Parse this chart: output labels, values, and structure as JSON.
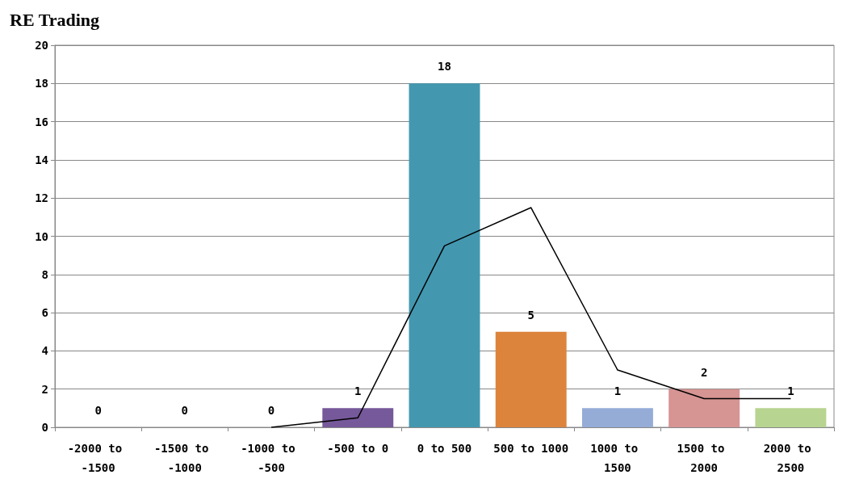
{
  "chart_data": {
    "type": "bar",
    "title": "RE Trading",
    "categories": [
      "-2000 to -1500",
      "-1500 to -1000",
      "-1000 to -500",
      "-500 to 0",
      "0 to 500",
      "500 to 1000",
      "1000 to 1500",
      "1500 to 2000",
      "2000 to 2500"
    ],
    "series": [
      {
        "values": [
          0,
          0,
          0,
          1,
          18,
          5,
          1,
          2,
          1
        ],
        "colors": [
          "#76599a",
          "#4398b0",
          "#dc843c",
          "#76599a",
          "#4398b0",
          "#dc843c",
          "#95acd7",
          "#d69493",
          "#b7d491"
        ],
        "value_labels": [
          "0",
          "0",
          "0",
          "1",
          "18",
          "5",
          "1",
          "2",
          "1"
        ]
      },
      {
        "type": "line",
        "color": "#000000",
        "values": [
          null,
          null,
          0,
          0.5,
          9.5,
          11.5,
          3,
          1.5,
          1.5
        ]
      }
    ],
    "ylim": [
      0,
      20
    ],
    "yticks": [
      0,
      2,
      4,
      6,
      8,
      10,
      12,
      14,
      16,
      18,
      20
    ],
    "grid": "y",
    "marker": "none",
    "line_style": "solid"
  }
}
